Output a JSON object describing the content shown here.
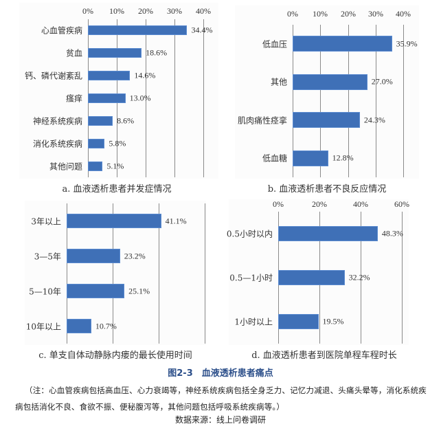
{
  "figure": {
    "title": "图2-3　血液透析患者痛点",
    "note": "（注：心血管疾病包括高血压、心力衰竭等，神经系统疾病包括全身乏力、记忆力减退、头痛头晕等，消化系统疾病包括消化不良、食欲不振、便秘腹泻等，其他问题包括呼吸系统疾病等。）",
    "source": "数据来源：线上问卷调研"
  },
  "colors": {
    "bar": "#3f70b7",
    "grid": "#8a8a8a",
    "title": "#2c4f8a"
  },
  "chart_data": [
    {
      "type": "bar",
      "orientation": "horizontal",
      "title": "a. 血液透析患者并发症情况",
      "categories": [
        "心血管疾病",
        "贫血",
        "钙、磷代谢紊乱",
        "瘙痒",
        "神经系统疾病",
        "消化系统疾病",
        "其他问题"
      ],
      "values": [
        34.4,
        18.6,
        14.6,
        13.0,
        8.6,
        5.8,
        5.1
      ],
      "labels": [
        "34.4%",
        "18.6%",
        "14.6%",
        "13.0%",
        "8.6%",
        "5.8%",
        "5.1%"
      ],
      "xticks": [
        "0%",
        "10%",
        "20%",
        "30%",
        "40%"
      ],
      "xlim": [
        0,
        40
      ],
      "xlabel": "",
      "ylabel": "",
      "grid": true,
      "axis_position": "top"
    },
    {
      "type": "bar",
      "orientation": "horizontal",
      "title": "b. 血液透析患者不良反应情况",
      "categories": [
        "低血压",
        "其他",
        "肌肉痛性痉挛",
        "低血糖"
      ],
      "values": [
        35.9,
        27.0,
        24.3,
        12.8
      ],
      "labels": [
        "35.9%",
        "27.0%",
        "24.3%",
        "12.8%"
      ],
      "xticks": [
        "0%",
        "10%",
        "20%",
        "30%",
        "40%"
      ],
      "xlim": [
        0,
        40
      ],
      "xlabel": "",
      "ylabel": "",
      "grid": true,
      "axis_position": "top"
    },
    {
      "type": "bar",
      "orientation": "horizontal",
      "title": "c. 单支自体动静脉内瘘的最长使用时间",
      "categories": [
        "3年以上",
        "3—5年",
        "5—10年",
        "10年以上"
      ],
      "values": [
        41.1,
        23.2,
        25.1,
        10.7
      ],
      "labels": [
        "41.1%",
        "23.2%",
        "25.1%",
        "10.7%"
      ],
      "xticks": [],
      "xlim": [
        0,
        60
      ],
      "xlabel": "",
      "ylabel": "",
      "grid": true
    },
    {
      "type": "bar",
      "orientation": "horizontal",
      "title": "d. 血液透析患者到医院单程车程时长",
      "categories": [
        "0.5小时以内",
        "0.5—1小时",
        "1小时以上"
      ],
      "values": [
        48.3,
        32.2,
        19.5
      ],
      "labels": [
        "48.3%",
        "32.2%",
        "19.5%"
      ],
      "xticks": [
        "0%",
        "20%",
        "40%",
        "60%"
      ],
      "xlim": [
        0,
        60
      ],
      "xlabel": "",
      "ylabel": "",
      "grid": true,
      "axis_position": "top"
    }
  ]
}
